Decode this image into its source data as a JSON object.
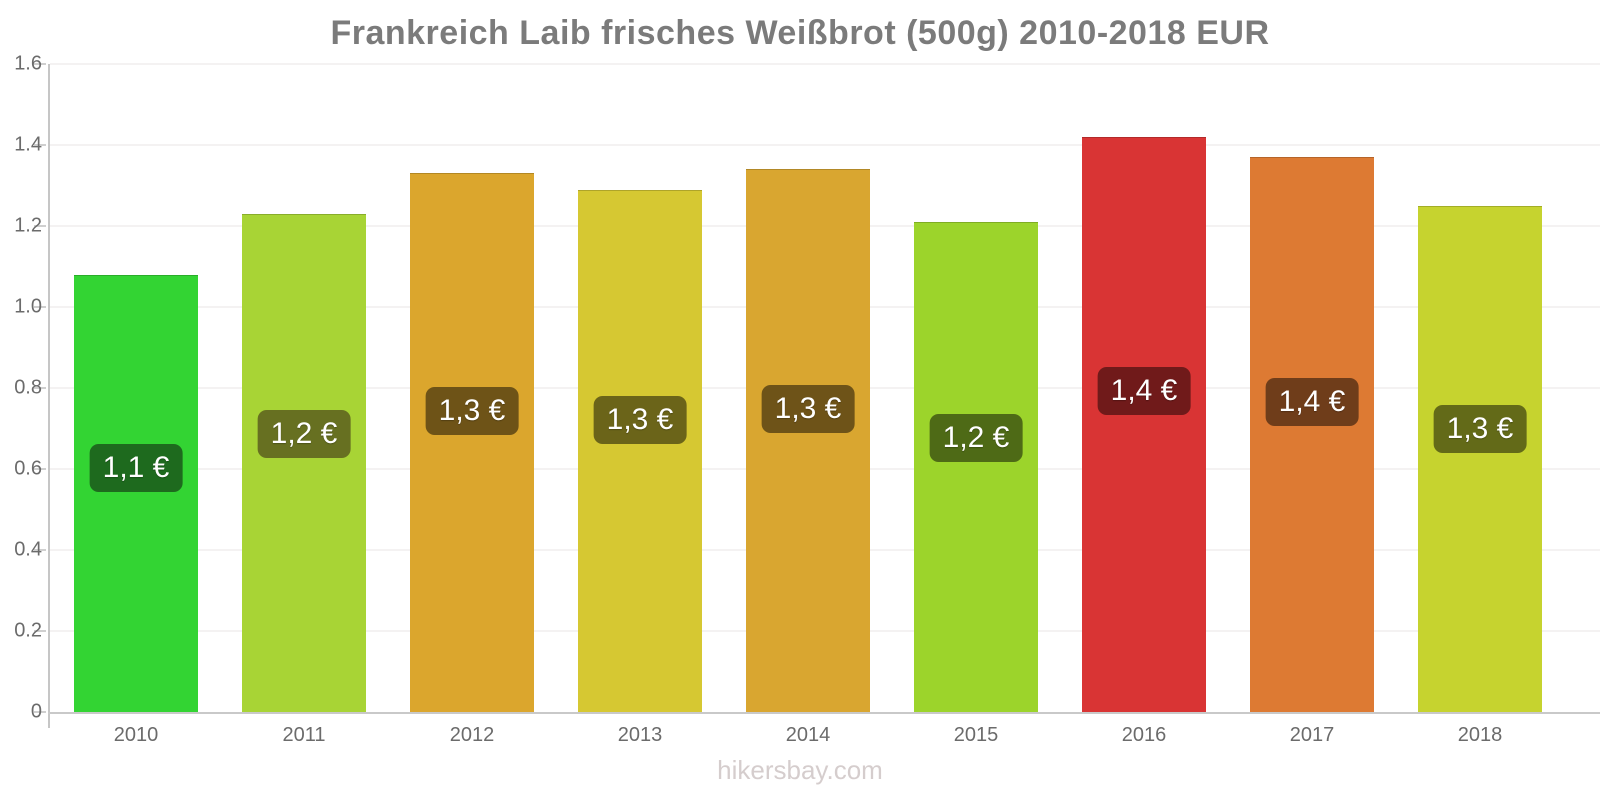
{
  "title": "Frankreich Laib frisches Weißbrot (500g) 2010-2018 EUR",
  "footer": "hikersbay.com",
  "colors": {
    "title_text": "#7b7b7b",
    "tick_text": "#6b6b6b",
    "footer_text": "#d5cdcd",
    "badge_text": "#ffffff",
    "axis": "#c9c9c9",
    "grid": "#f4f2f2"
  },
  "chart_data": {
    "type": "bar",
    "title": "Frankreich Laib frisches Weißbrot (500g) 2010-2018 EUR",
    "xlabel": "",
    "ylabel": "",
    "categories": [
      "2010",
      "2011",
      "2012",
      "2013",
      "2014",
      "2015",
      "2016",
      "2017",
      "2018"
    ],
    "values": [
      1.08,
      1.23,
      1.33,
      1.29,
      1.34,
      1.21,
      1.42,
      1.37,
      1.25
    ],
    "bar_labels": [
      "1,1 €",
      "1,2 €",
      "1,3 €",
      "1,3 €",
      "1,3 €",
      "1,2 €",
      "1,4 €",
      "1,4 €",
      "1,3 €"
    ],
    "bar_colors": [
      "#33d433",
      "#a8d435",
      "#dba62d",
      "#d6c832",
      "#d9a630",
      "#9cd42b",
      "#d93434",
      "#dd7a33",
      "#c6d32f"
    ],
    "badge_colors": [
      "#1e6a1e",
      "#677021",
      "#6e5317",
      "#6b6419",
      "#6e5318",
      "#4e6a16",
      "#701a1a",
      "#6f3d1a",
      "#636a18"
    ],
    "ylim": [
      0,
      1.6
    ],
    "yticks": [
      0,
      0.2,
      0.4,
      0.6,
      0.8,
      1.0,
      1.2,
      1.4,
      1.6
    ],
    "ytick_labels": [
      "0",
      "0.2",
      "0.4",
      "0.6",
      "0.8",
      "1.0",
      "1.2",
      "1.4",
      "1.6"
    ],
    "grid": "horizontal",
    "legend": "none"
  }
}
